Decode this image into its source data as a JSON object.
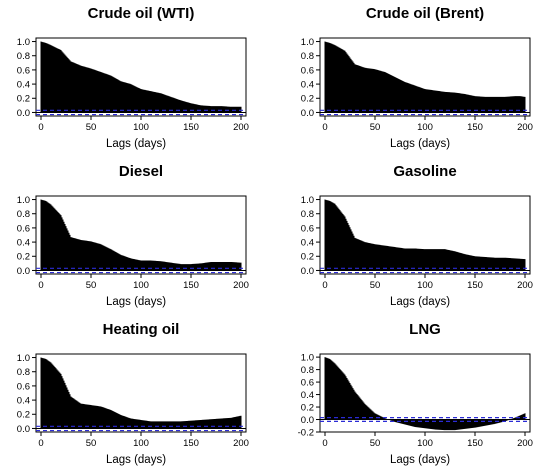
{
  "chart_data": [
    {
      "type": "bar",
      "title": "Crude oil (WTI)",
      "xlabel": "Lags (days)",
      "ylabel": "",
      "xlim": [
        -5,
        205
      ],
      "ylim": [
        -0.05,
        1.05
      ],
      "x_ticks": [
        0,
        50,
        100,
        150,
        200
      ],
      "y_ticks": [
        0.0,
        0.2,
        0.4,
        0.6,
        0.8,
        1.0
      ],
      "confidence_band": [
        -0.03,
        0.03
      ],
      "acf_profile": [
        [
          0,
          1.0
        ],
        [
          5,
          0.98
        ],
        [
          10,
          0.95
        ],
        [
          20,
          0.88
        ],
        [
          30,
          0.72
        ],
        [
          40,
          0.66
        ],
        [
          50,
          0.62
        ],
        [
          60,
          0.57
        ],
        [
          70,
          0.52
        ],
        [
          80,
          0.44
        ],
        [
          90,
          0.4
        ],
        [
          100,
          0.33
        ],
        [
          110,
          0.3
        ],
        [
          120,
          0.27
        ],
        [
          130,
          0.22
        ],
        [
          140,
          0.17
        ],
        [
          150,
          0.13
        ],
        [
          160,
          0.1
        ],
        [
          170,
          0.09
        ],
        [
          180,
          0.09
        ],
        [
          190,
          0.08
        ],
        [
          200,
          0.08
        ]
      ]
    },
    {
      "type": "bar",
      "title": "Crude oil (Brent)",
      "xlabel": "Lags (days)",
      "ylabel": "",
      "xlim": [
        -5,
        205
      ],
      "ylim": [
        -0.05,
        1.05
      ],
      "x_ticks": [
        0,
        50,
        100,
        150,
        200
      ],
      "y_ticks": [
        0.0,
        0.2,
        0.4,
        0.6,
        0.8,
        1.0
      ],
      "confidence_band": [
        -0.03,
        0.03
      ],
      "acf_profile": [
        [
          0,
          1.0
        ],
        [
          5,
          0.98
        ],
        [
          10,
          0.95
        ],
        [
          20,
          0.87
        ],
        [
          30,
          0.68
        ],
        [
          40,
          0.63
        ],
        [
          50,
          0.61
        ],
        [
          60,
          0.57
        ],
        [
          70,
          0.5
        ],
        [
          80,
          0.43
        ],
        [
          90,
          0.38
        ],
        [
          100,
          0.33
        ],
        [
          110,
          0.31
        ],
        [
          120,
          0.29
        ],
        [
          130,
          0.28
        ],
        [
          140,
          0.26
        ],
        [
          150,
          0.23
        ],
        [
          160,
          0.22
        ],
        [
          170,
          0.22
        ],
        [
          180,
          0.22
        ],
        [
          190,
          0.23
        ],
        [
          195,
          0.23
        ],
        [
          200,
          0.22
        ]
      ]
    },
    {
      "type": "bar",
      "title": "Diesel",
      "xlabel": "Lags (days)",
      "ylabel": "",
      "xlim": [
        -5,
        205
      ],
      "ylim": [
        -0.05,
        1.05
      ],
      "x_ticks": [
        0,
        50,
        100,
        150,
        200
      ],
      "y_ticks": [
        0.0,
        0.2,
        0.4,
        0.6,
        0.8,
        1.0
      ],
      "confidence_band": [
        -0.03,
        0.03
      ],
      "acf_profile": [
        [
          0,
          1.0
        ],
        [
          5,
          0.98
        ],
        [
          10,
          0.93
        ],
        [
          20,
          0.78
        ],
        [
          30,
          0.47
        ],
        [
          40,
          0.43
        ],
        [
          50,
          0.41
        ],
        [
          60,
          0.37
        ],
        [
          70,
          0.3
        ],
        [
          80,
          0.22
        ],
        [
          90,
          0.17
        ],
        [
          100,
          0.14
        ],
        [
          110,
          0.14
        ],
        [
          120,
          0.13
        ],
        [
          130,
          0.11
        ],
        [
          140,
          0.09
        ],
        [
          150,
          0.09
        ],
        [
          160,
          0.1
        ],
        [
          170,
          0.12
        ],
        [
          180,
          0.12
        ],
        [
          190,
          0.12
        ],
        [
          200,
          0.11
        ]
      ]
    },
    {
      "type": "bar",
      "title": "Gasoline",
      "xlabel": "Lags (days)",
      "ylabel": "",
      "xlim": [
        -5,
        205
      ],
      "ylim": [
        -0.05,
        1.05
      ],
      "x_ticks": [
        0,
        50,
        100,
        150,
        200
      ],
      "y_ticks": [
        0.0,
        0.2,
        0.4,
        0.6,
        0.8,
        1.0
      ],
      "confidence_band": [
        -0.03,
        0.03
      ],
      "acf_profile": [
        [
          0,
          1.0
        ],
        [
          5,
          0.98
        ],
        [
          10,
          0.94
        ],
        [
          20,
          0.76
        ],
        [
          30,
          0.46
        ],
        [
          40,
          0.4
        ],
        [
          50,
          0.37
        ],
        [
          60,
          0.35
        ],
        [
          70,
          0.33
        ],
        [
          80,
          0.31
        ],
        [
          90,
          0.31
        ],
        [
          100,
          0.3
        ],
        [
          110,
          0.3
        ],
        [
          120,
          0.3
        ],
        [
          130,
          0.27
        ],
        [
          140,
          0.23
        ],
        [
          150,
          0.2
        ],
        [
          160,
          0.19
        ],
        [
          170,
          0.18
        ],
        [
          180,
          0.18
        ],
        [
          190,
          0.17
        ],
        [
          200,
          0.16
        ]
      ]
    },
    {
      "type": "bar",
      "title": "Heating oil",
      "xlabel": "Lags (days)",
      "ylabel": "",
      "xlim": [
        -5,
        205
      ],
      "ylim": [
        -0.05,
        1.05
      ],
      "x_ticks": [
        0,
        50,
        100,
        150,
        200
      ],
      "y_ticks": [
        0.0,
        0.2,
        0.4,
        0.6,
        0.8,
        1.0
      ],
      "confidence_band": [
        -0.03,
        0.03
      ],
      "acf_profile": [
        [
          0,
          1.0
        ],
        [
          5,
          0.98
        ],
        [
          10,
          0.93
        ],
        [
          20,
          0.77
        ],
        [
          30,
          0.45
        ],
        [
          40,
          0.35
        ],
        [
          50,
          0.33
        ],
        [
          60,
          0.31
        ],
        [
          70,
          0.26
        ],
        [
          80,
          0.19
        ],
        [
          90,
          0.14
        ],
        [
          100,
          0.12
        ],
        [
          110,
          0.1
        ],
        [
          120,
          0.1
        ],
        [
          130,
          0.1
        ],
        [
          140,
          0.1
        ],
        [
          150,
          0.11
        ],
        [
          160,
          0.12
        ],
        [
          170,
          0.13
        ],
        [
          180,
          0.14
        ],
        [
          190,
          0.15
        ],
        [
          200,
          0.18
        ]
      ]
    },
    {
      "type": "bar",
      "title": "LNG",
      "xlabel": "Lags (days)",
      "ylabel": "",
      "xlim": [
        -5,
        205
      ],
      "ylim": [
        -0.2,
        1.05
      ],
      "x_ticks": [
        0,
        50,
        100,
        150,
        200
      ],
      "y_ticks": [
        -0.2,
        0.0,
        0.2,
        0.4,
        0.6,
        0.8,
        1.0
      ],
      "confidence_band": [
        -0.03,
        0.03
      ],
      "acf_profile": [
        [
          0,
          1.0
        ],
        [
          5,
          0.97
        ],
        [
          10,
          0.9
        ],
        [
          20,
          0.72
        ],
        [
          30,
          0.45
        ],
        [
          40,
          0.25
        ],
        [
          50,
          0.1
        ],
        [
          60,
          0.02
        ],
        [
          70,
          -0.04
        ],
        [
          80,
          -0.08
        ],
        [
          90,
          -0.12
        ],
        [
          100,
          -0.14
        ],
        [
          110,
          -0.16
        ],
        [
          120,
          -0.17
        ],
        [
          130,
          -0.17
        ],
        [
          140,
          -0.15
        ],
        [
          150,
          -0.13
        ],
        [
          160,
          -0.1
        ],
        [
          170,
          -0.07
        ],
        [
          180,
          -0.03
        ],
        [
          190,
          0.03
        ],
        [
          200,
          0.1
        ]
      ]
    }
  ]
}
